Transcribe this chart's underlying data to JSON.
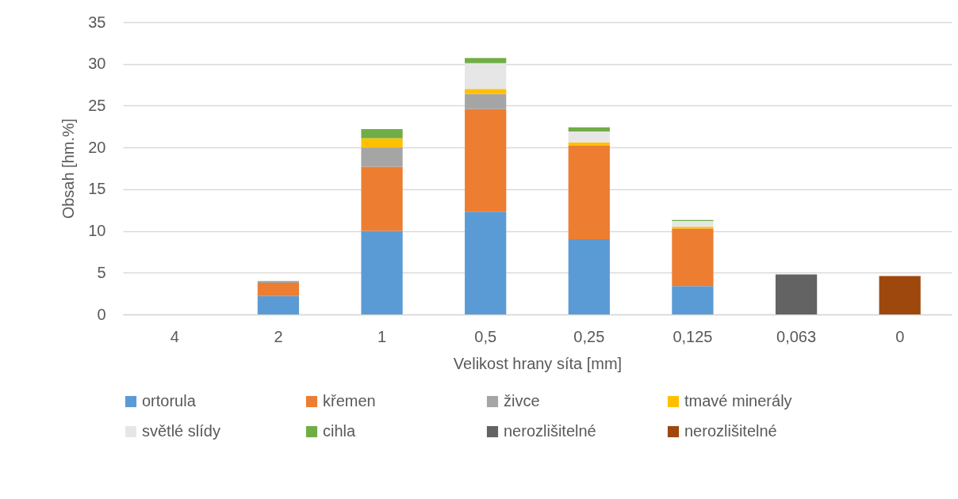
{
  "chart_data": {
    "type": "bar",
    "stacked": true,
    "xlabel": "Velikost hrany síta [mm]",
    "ylabel": "Obsah [hm.%]",
    "categories": [
      "4",
      "2",
      "1",
      "0,5",
      "0,25",
      "0,125",
      "0,063",
      "0"
    ],
    "series": [
      {
        "name": "ortorula",
        "color": "#5b9bd5",
        "values": [
          null,
          2.2,
          10.0,
          12.3,
          9.0,
          3.4,
          null,
          null
        ]
      },
      {
        "name": "křemen",
        "color": "#ed7d31",
        "values": [
          null,
          1.6,
          7.7,
          12.3,
          11.2,
          6.9,
          null,
          null
        ]
      },
      {
        "name": "živce",
        "color": "#a5a5a5",
        "values": [
          null,
          0.2,
          2.3,
          1.8,
          null,
          null,
          null,
          null
        ]
      },
      {
        "name": "tmavé minerály",
        "color": "#ffc000",
        "values": [
          null,
          null,
          1.1,
          0.6,
          0.4,
          0.2,
          null,
          null
        ]
      },
      {
        "name": "světlé slídy",
        "color": "#e7e6e6",
        "values": [
          null,
          null,
          null,
          3.1,
          1.3,
          0.7,
          null,
          null
        ]
      },
      {
        "name": "cihla",
        "color": "#70ad47",
        "values": [
          null,
          null,
          1.1,
          0.6,
          0.5,
          0.1,
          null,
          null
        ]
      },
      {
        "name": "nerozlišitelné",
        "color": "#636363",
        "values": [
          null,
          null,
          null,
          null,
          null,
          null,
          4.8,
          null
        ]
      },
      {
        "name": "nerozlišitelné",
        "color": "#9e480e",
        "values": [
          null,
          null,
          null,
          null,
          null,
          null,
          null,
          4.6
        ]
      }
    ],
    "ylim": [
      0,
      35
    ],
    "yticks": [
      0,
      5,
      10,
      15,
      20,
      25,
      30,
      35
    ],
    "grid": "y",
    "legend": "bottom"
  }
}
